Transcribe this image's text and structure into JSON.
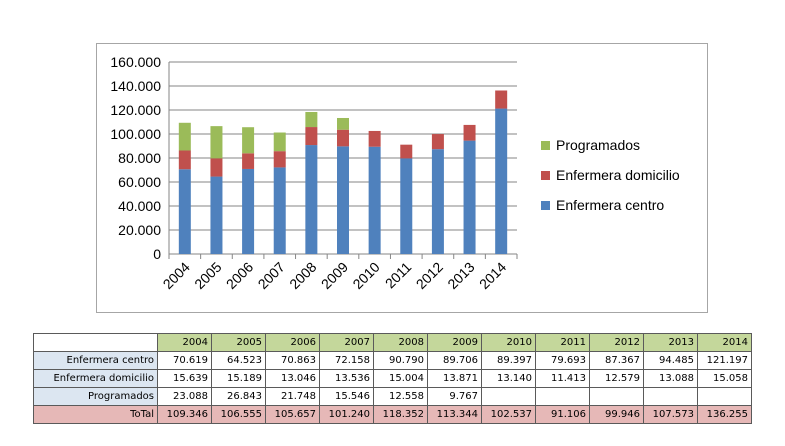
{
  "chart_data": {
    "type": "bar",
    "stacked": true,
    "categories": [
      "2004",
      "2005",
      "2006",
      "2007",
      "2008",
      "2009",
      "2010",
      "2011",
      "2012",
      "2013",
      "2014"
    ],
    "series": [
      {
        "name": "Enfermera centro",
        "color": "#4f81bd",
        "values": [
          70619,
          64523,
          70863,
          72158,
          90790,
          89706,
          89397,
          79693,
          87367,
          94485,
          121197
        ]
      },
      {
        "name": "Enfermera domicilio",
        "color": "#c0504d",
        "values": [
          15639,
          15189,
          13046,
          13536,
          15004,
          13871,
          13140,
          11413,
          12579,
          13088,
          15058
        ]
      },
      {
        "name": "Programados",
        "color": "#9bbb59",
        "values": [
          23088,
          26843,
          21748,
          15546,
          12558,
          9767,
          null,
          null,
          null,
          null,
          null
        ]
      }
    ],
    "ylim": [
      0,
      160000
    ],
    "yticks": [
      0,
      20000,
      40000,
      60000,
      80000,
      100000,
      120000,
      140000,
      160000
    ],
    "ytick_labels": [
      "0",
      "20.000",
      "40.000",
      "60.000",
      "80.000",
      "100.000",
      "120.000",
      "140.000",
      "160.000"
    ],
    "legend_position": "right",
    "grid": true
  },
  "table": {
    "years": [
      "2004",
      "2005",
      "2006",
      "2007",
      "2008",
      "2009",
      "2010",
      "2011",
      "2012",
      "2013",
      "2014"
    ],
    "rows": [
      {
        "label": "Enfermera centro",
        "values": [
          "70.619",
          "64.523",
          "70.863",
          "72.158",
          "90.790",
          "89.706",
          "89.397",
          "79.693",
          "87.367",
          "94.485",
          "121.197"
        ]
      },
      {
        "label": "Enfermera domicilio",
        "values": [
          "15.639",
          "15.189",
          "13.046",
          "13.536",
          "15.004",
          "13.871",
          "13.140",
          "11.413",
          "12.579",
          "13.088",
          "15.058"
        ]
      },
      {
        "label": "Programados",
        "values": [
          "23.088",
          "26.843",
          "21.748",
          "15.546",
          "12.558",
          "9.767",
          "",
          "",
          "",
          "",
          ""
        ]
      }
    ],
    "total": {
      "label": "ToTal",
      "values": [
        "109.346",
        "106.555",
        "105.657",
        "101.240",
        "118.352",
        "113.344",
        "102.537",
        "91.106",
        "99.946",
        "107.573",
        "136.255"
      ]
    }
  }
}
